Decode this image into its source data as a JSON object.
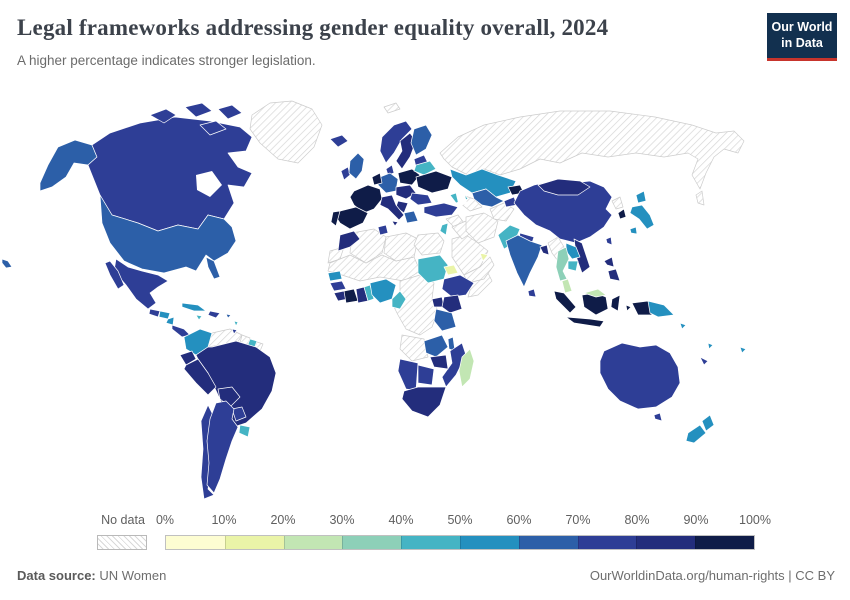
{
  "header": {
    "title": "Legal frameworks addressing gender equality overall, 2024",
    "subtitle": "A higher percentage indicates stronger legislation.",
    "logo_line1": "Our World",
    "logo_line2": "in Data",
    "logo_bg": "#12304f",
    "logo_accent": "#c7342c"
  },
  "legend": {
    "no_data_label": "No data",
    "tick_labels": [
      "0%",
      "10%",
      "20%",
      "30%",
      "40%",
      "50%",
      "60%",
      "70%",
      "80%",
      "90%",
      "100%"
    ],
    "bin_colors": [
      "#fdfdd2",
      "#eaf4a8",
      "#c2e6b3",
      "#8dd0b8",
      "#45b4c4",
      "#2490bf",
      "#2c5fa8",
      "#2e3e96",
      "#232d7c",
      "#0f1c48"
    ]
  },
  "map": {
    "border_color": "#ffffff",
    "no_data_border_color": "#cccccc",
    "hatch_line_color": "#d6d6d6",
    "regions": {
      "greenland": "nd",
      "svalbard": "nd",
      "russia": "nd",
      "sakhalin": "nd",
      "venezuela": "nd",
      "guyana": "nd",
      "french-guiana": "nd",
      "north-korea": "nd",
      "myanmar": "nd",
      "turkmenistan": "nd",
      "afghanistan": "nd",
      "iran": "nd",
      "iraq": "nd",
      "syria": "nd",
      "saudi-arabia": "nd",
      "yemen-oman": "nd",
      "egypt": "nd",
      "libya": "nd",
      "algeria": "nd",
      "western-sahara": "nd",
      "sahel": "nd",
      "congo-drc": "nd",
      "somalia": "nd",
      "angola": "nd",
      "alaska": 7,
      "canada": 8,
      "arctic-island-1": 8,
      "arctic-island-2": 8,
      "arctic-island-3": 8,
      "arctic-island-4": 8,
      "usa": 7,
      "florida": 7,
      "hawaii": 7,
      "mexico": 8,
      "baja": 8,
      "guatemala": 8,
      "honduras": 6,
      "nicaragua": 6,
      "costa-rica-panama": 8,
      "cuba": 6,
      "hispaniola": 8,
      "jamaica": 5,
      "puerto-rico": 7,
      "lesser-antilles": 5,
      "trinidad": 8,
      "colombia": 6,
      "suriname": 5,
      "ecuador": 9,
      "peru": 9,
      "brazil": 9,
      "bolivia": 9,
      "paraguay": 8,
      "uruguay": 5,
      "argentina": 8,
      "chile": 8,
      "iceland": 8,
      "ireland": 8,
      "uk": 7,
      "norway": 8,
      "sweden": 9,
      "finland": 7,
      "baltics": 8,
      "denmark": 8,
      "germany": 7,
      "benelux": 10,
      "poland": 10,
      "belarus": 5,
      "ukraine": 10,
      "france": 10,
      "spain": 10,
      "portugal": 10,
      "italy": 9,
      "sicily": 9,
      "czech-austria": 9,
      "romania": 8,
      "balkans": 9,
      "greece": 7,
      "morocco": 9,
      "tunisia": 8,
      "senegal": 6,
      "guinea": 8,
      "sierra-leone-liberia": 9,
      "cote-divoire": 10,
      "ghana": 9,
      "togo-benin": 5,
      "nigeria": 6,
      "cameroon": 5,
      "sudan": 5,
      "eritrea": 2,
      "ethiopia": 8,
      "uganda": 9,
      "kenya": 9,
      "tanzania": 7,
      "zambia": 7,
      "malawi": 7,
      "mozambique": 8,
      "zimbabwe": 9,
      "botswana": 8,
      "namibia": 8,
      "south-africa": 9,
      "madagascar": 3,
      "turkey": 8,
      "jordan-israel": 5,
      "uae": 2,
      "caucasus": 5,
      "kazakhstan": 6,
      "uzbekistan": 7,
      "kyrgyzstan": 10,
      "tajikistan": 8,
      "pakistan": 5,
      "india": 7,
      "nepal": 8,
      "bangladesh": 9,
      "sri-lanka": 8,
      "thailand": 4,
      "laos": 6,
      "vietnam": 9,
      "cambodia": 5,
      "malaysia-peninsula": 3,
      "sumatra": 10,
      "java": 10,
      "borneo-indonesia": 10,
      "borneo-malaysia": 3,
      "sulawesi": 10,
      "moluccas": 10,
      "west-papua": 10,
      "papua-new-guinea": 6,
      "philippines-north": 9,
      "philippines-south": 9,
      "taiwan": 8,
      "south-korea": 10,
      "japan-hokkaido": 6,
      "japan-honshu": 6,
      "japan-kyushu": 6,
      "china": 8,
      "mongolia": 9,
      "australia": 8,
      "tasmania": 8,
      "new-zealand-north": 6,
      "new-zealand-south": 6,
      "solomon-islands": 6,
      "vanuatu": 6,
      "fiji": 6,
      "new-caledonia": 8
    }
  },
  "footer": {
    "source_label": "Data source:",
    "source_value": " UN Women",
    "right_text": "OurWorldinData.org/human-rights | CC BY"
  }
}
